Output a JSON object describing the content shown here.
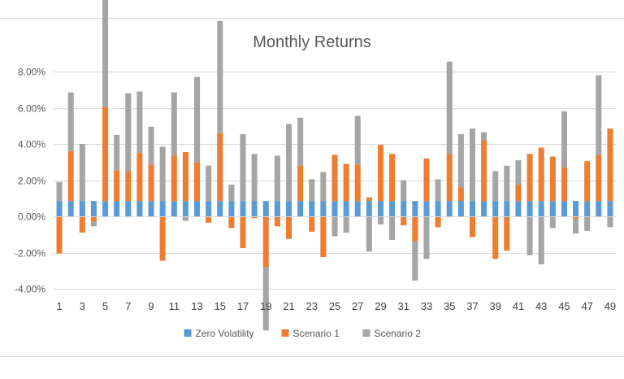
{
  "chart_data": {
    "type": "bar",
    "title": "Monthly Returns",
    "xlabel": "",
    "ylabel": "",
    "ylim": [
      -0.04,
      0.08
    ],
    "ytick_step": 0.02,
    "y_format": "percent_2dp",
    "grid": true,
    "legend_position": "bottom",
    "x_tick_labels_every": 2,
    "categories": [
      1,
      2,
      3,
      4,
      5,
      6,
      7,
      8,
      9,
      10,
      11,
      12,
      13,
      14,
      15,
      16,
      17,
      18,
      19,
      20,
      21,
      22,
      23,
      24,
      25,
      26,
      27,
      28,
      29,
      30,
      31,
      32,
      33,
      34,
      35,
      36,
      37,
      38,
      39,
      40,
      41,
      42,
      43,
      44,
      45,
      46,
      47,
      48,
      49
    ],
    "series": [
      {
        "name": "Zero Volatility",
        "color": "#5B9BD5",
        "values": [
          0.0085,
          0.0085,
          0.0085,
          0.0085,
          0.0085,
          0.0085,
          0.0085,
          0.0085,
          0.0085,
          0.0085,
          0.0085,
          0.0085,
          0.0085,
          0.0085,
          0.0085,
          0.0085,
          0.0085,
          0.0085,
          0.0085,
          0.0085,
          0.0085,
          0.0085,
          0.0085,
          0.0085,
          0.0085,
          0.0085,
          0.0085,
          0.0085,
          0.0085,
          0.0085,
          0.0085,
          0.0085,
          0.0085,
          0.0085,
          0.0085,
          0.0085,
          0.0085,
          0.0085,
          0.0085,
          0.0085,
          0.0085,
          0.0085,
          0.0085,
          0.0085,
          0.0085,
          0.0085,
          0.0085,
          0.0085,
          0.0085
        ]
      },
      {
        "name": "Scenario 1",
        "color": "#ED7D31",
        "values": [
          -0.0205,
          0.0275,
          -0.009,
          -0.003,
          0.052,
          0.017,
          0.0165,
          0.0265,
          0.02,
          -0.0245,
          0.025,
          0.027,
          0.0215,
          -0.0035,
          0.0375,
          -0.0065,
          -0.0175,
          -0.001,
          -0.028,
          -0.0055,
          -0.0125,
          0.0195,
          -0.0085,
          -0.0225,
          0.0255,
          0.0205,
          0.02,
          0.002,
          0.031,
          0.026,
          -0.005,
          -0.0135,
          0.0235,
          -0.006,
          0.026,
          0.0075,
          -0.0115,
          0.0335,
          -0.0235,
          -0.019,
          0.009,
          0.026,
          0.0295,
          0.0245,
          0.0185,
          -0.0015,
          0.022,
          0.0255,
          0.04
        ]
      },
      {
        "name": "Scenario 2",
        "color": "#A5A5A5",
        "values": [
          0.0105,
          0.0325,
          0.0315,
          -0.0025,
          0.062,
          0.0195,
          0.043,
          0.034,
          0.021,
          0.03,
          0.035,
          -0.0025,
          0.047,
          0.0195,
          0.062,
          0.009,
          0.037,
          0.026,
          -0.035,
          0.025,
          0.0425,
          0.0265,
          0.012,
          0.016,
          -0.011,
          -0.009,
          0.027,
          -0.0195,
          -0.0045,
          -0.013,
          0.0115,
          -0.022,
          -0.0235,
          0.012,
          0.051,
          0.0295,
          0.04,
          0.0045,
          0.0165,
          0.0195,
          0.0135,
          -0.0215,
          -0.0265,
          -0.0065,
          0.031,
          -0.008,
          -0.008,
          0.044,
          -0.006
        ]
      }
    ]
  }
}
